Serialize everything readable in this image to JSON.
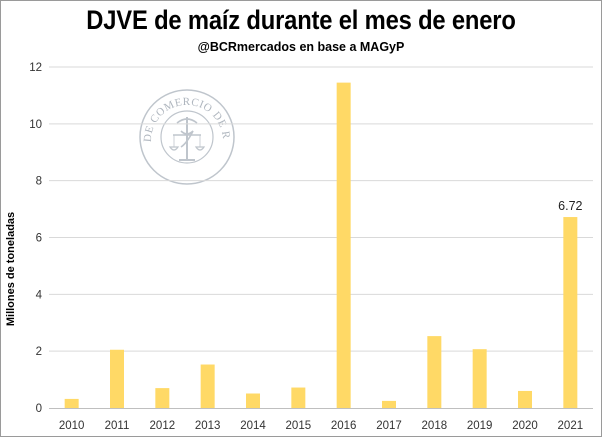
{
  "chart_data": {
    "type": "bar",
    "title": "DJVE de maíz durante el mes de enero",
    "subtitle": "@BCRmercados  en base a MAGyP",
    "xlabel": "",
    "ylabel": "Millones de toneladas",
    "categories": [
      "2010",
      "2011",
      "2012",
      "2013",
      "2014",
      "2015",
      "2016",
      "2017",
      "2018",
      "2019",
      "2020",
      "2021"
    ],
    "values": [
      0.32,
      2.05,
      0.7,
      1.53,
      0.51,
      0.72,
      11.45,
      0.25,
      2.53,
      2.07,
      0.6,
      6.72
    ],
    "data_labels": [
      {
        "category": "2021",
        "text": "6.72"
      }
    ],
    "ylim": [
      0,
      12
    ],
    "yticks": [
      "0",
      "2",
      "4",
      "6",
      "8",
      "10",
      "12"
    ],
    "grid": true,
    "bar_color": "#ffd966",
    "grid_color": "#d9d9d9"
  },
  "watermark": {
    "name": "seal-logo",
    "text": "BOLSA DE COMERCIO DE ROSARIO",
    "color": "#6d7a89"
  }
}
